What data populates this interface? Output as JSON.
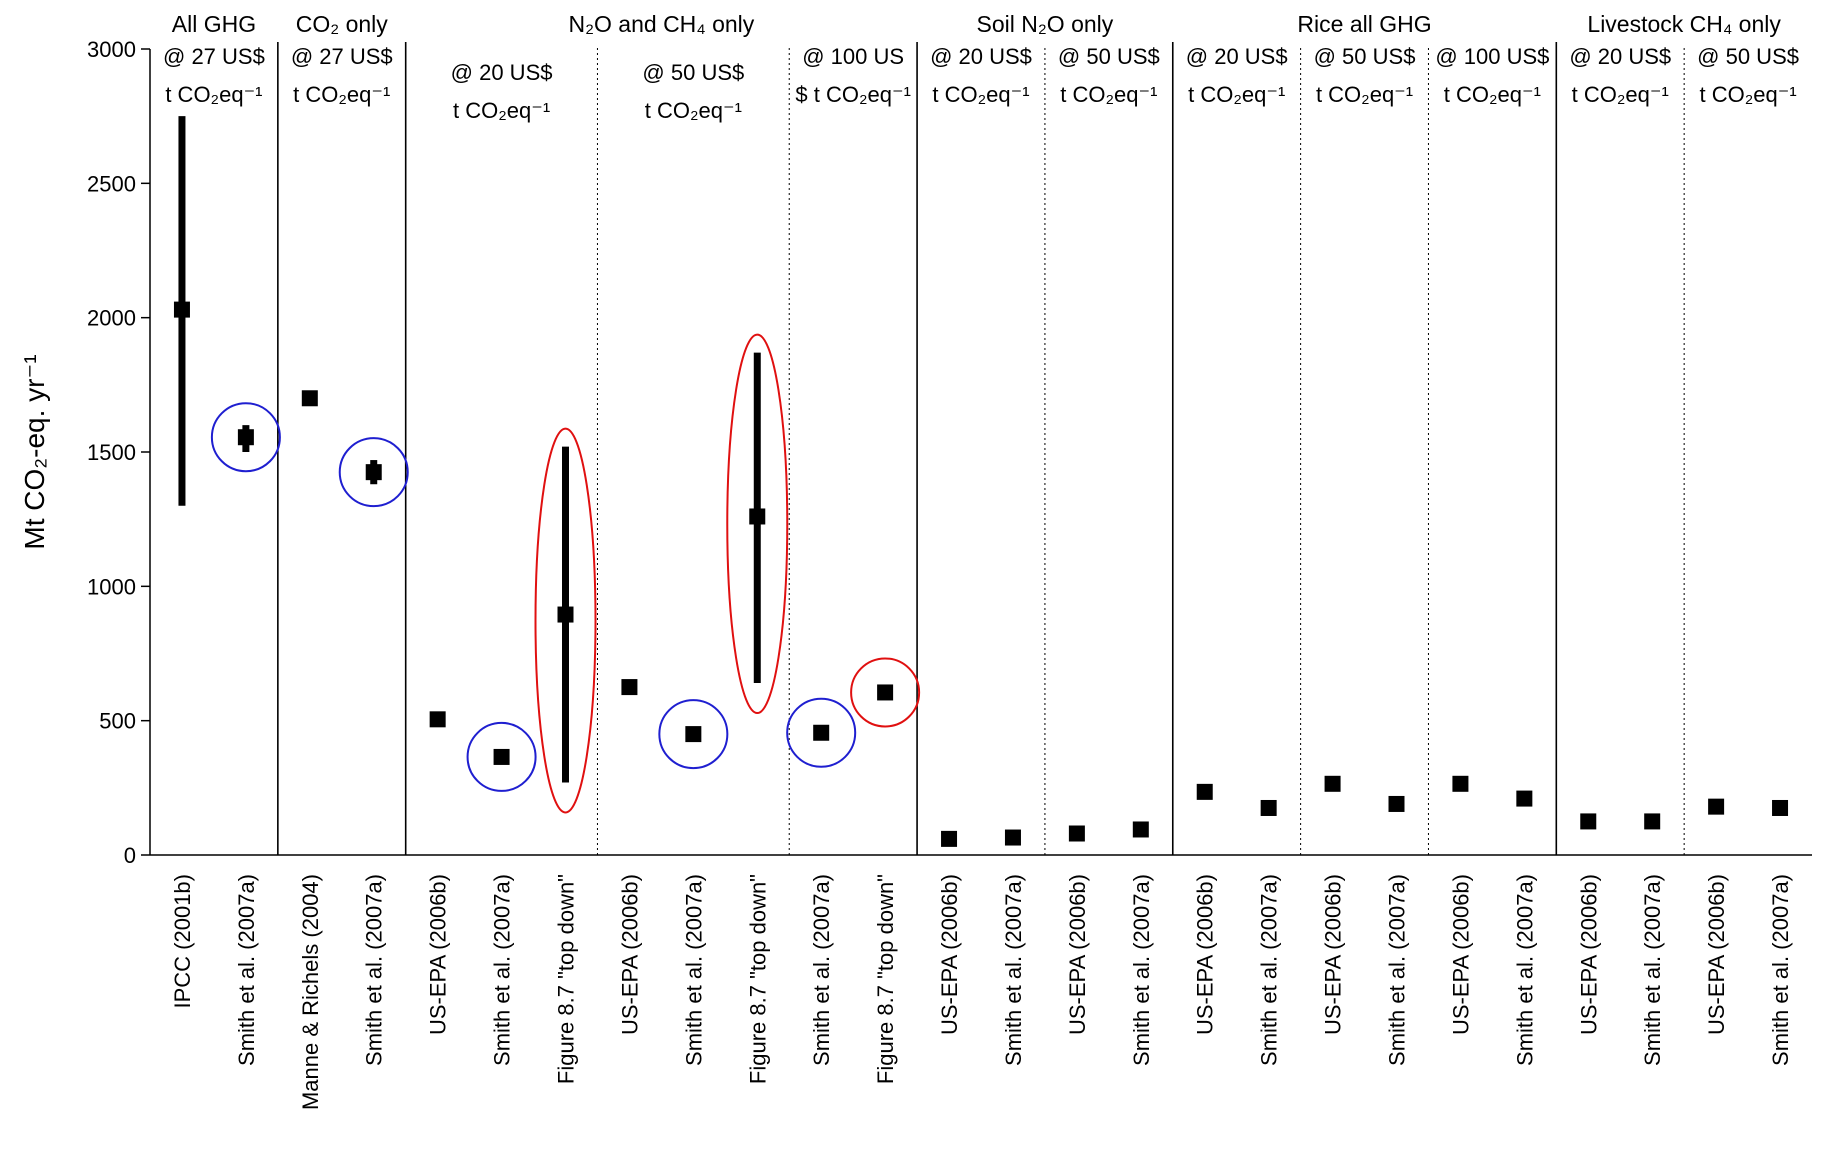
{
  "chart_data": {
    "type": "scatter",
    "ylabel": "Mt CO₂-eq. yr⁻¹",
    "ylim": [
      0,
      3000
    ],
    "yticks": [
      "0",
      "500",
      "1000",
      "1500",
      "2000",
      "2500",
      "3000"
    ],
    "yticks_values": [
      0,
      500,
      1000,
      1500,
      2000,
      2500,
      3000
    ],
    "grid": false,
    "legend": "none",
    "marker_color": "#000000",
    "highlight_colors": {
      "blue": "#1f1fd0",
      "red": "#e01010"
    },
    "groups": [
      {
        "title": "All GHG",
        "subgroups": [
          {
            "price": "@ 27 US$",
            "unit": "t CO₂eq⁻¹",
            "points": [
              {
                "label": "IPCC (2001b)",
                "value": 2030,
                "low": 1300,
                "high": 2750
              },
              {
                "label": "Smith et al. (2007a)",
                "value": 1555,
                "low": 1500,
                "high": 1600,
                "circle": "blue"
              }
            ]
          }
        ]
      },
      {
        "title": "CO₂ only",
        "subgroups": [
          {
            "price": "@ 27 US$",
            "unit": "t CO₂eq⁻¹",
            "points": [
              {
                "label": "Manne & Richels (2004)",
                "value": 1700
              },
              {
                "label": "Smith et al. (2007a)",
                "value": 1425,
                "low": 1380,
                "high": 1470,
                "circle": "blue"
              }
            ]
          }
        ]
      },
      {
        "title": "N₂O and CH₄ only",
        "subgroups": [
          {
            "price": "@ 20 US$",
            "unit": "t CO₂eq⁻¹",
            "points": [
              {
                "label": "US-EPA (2006b)",
                "value": 505
              },
              {
                "label": "Smith et al. (2007a)",
                "value": 365,
                "circle": "blue"
              },
              {
                "label": "Figure 8.7 \"top down\"",
                "value": 895,
                "low": 270,
                "high": 1520,
                "circle": "red"
              }
            ]
          },
          {
            "price": "@ 50 US$",
            "unit": "t CO₂eq⁻¹",
            "points": [
              {
                "label": "US-EPA (2006b)",
                "value": 625
              },
              {
                "label": "Smith et al. (2007a)",
                "value": 450,
                "circle": "blue"
              },
              {
                "label": "Figure 8.7 \"top down\"",
                "value": 1260,
                "low": 640,
                "high": 1870,
                "circle": "red"
              }
            ]
          },
          {
            "price": "@ 100 US",
            "unit": "$ t CO₂eq⁻¹",
            "points": [
              {
                "label": "Smith et al. (2007a)",
                "value": 455,
                "circle": "blue"
              },
              {
                "label": "Figure 8.7 \"top down\"",
                "value": 605,
                "circle": "red"
              }
            ]
          }
        ]
      },
      {
        "title": "Soil N₂O only",
        "subgroups": [
          {
            "price": "@ 20 US$",
            "unit": "t CO₂eq⁻¹",
            "points": [
              {
                "label": "US-EPA (2006b)",
                "value": 60
              },
              {
                "label": "Smith et al. (2007a)",
                "value": 65
              }
            ]
          },
          {
            "price": "@ 50 US$",
            "unit": "t CO₂eq⁻¹",
            "points": [
              {
                "label": "US-EPA (2006b)",
                "value": 80
              },
              {
                "label": "Smith et al. (2007a)",
                "value": 95
              }
            ]
          }
        ]
      },
      {
        "title": "Rice all GHG",
        "subgroups": [
          {
            "price": "@ 20 US$",
            "unit": "t CO₂eq⁻¹",
            "points": [
              {
                "label": "US-EPA (2006b)",
                "value": 235
              },
              {
                "label": "Smith et al. (2007a)",
                "value": 175
              }
            ]
          },
          {
            "price": "@ 50 US$",
            "unit": "t CO₂eq⁻¹",
            "points": [
              {
                "label": "US-EPA (2006b)",
                "value": 265
              },
              {
                "label": "Smith et al. (2007a)",
                "value": 190
              }
            ]
          },
          {
            "price": "@ 100 US$",
            "unit": "t CO₂eq⁻¹",
            "points": [
              {
                "label": "US-EPA (2006b)",
                "value": 265
              },
              {
                "label": "Smith et al. (2007a)",
                "value": 210
              }
            ]
          }
        ]
      },
      {
        "title": "Livestock CH₄ only",
        "subgroups": [
          {
            "price": "@ 20 US$",
            "unit": "t CO₂eq⁻¹",
            "points": [
              {
                "label": "US-EPA (2006b)",
                "value": 125
              },
              {
                "label": "Smith et al. (2007a)",
                "value": 125
              }
            ]
          },
          {
            "price": "@ 50 US$",
            "unit": "t CO₂eq⁻¹",
            "points": [
              {
                "label": "US-EPA (2006b)",
                "value": 180
              },
              {
                "label": "Smith et al. (2007a)",
                "value": 175
              }
            ]
          }
        ]
      }
    ]
  }
}
